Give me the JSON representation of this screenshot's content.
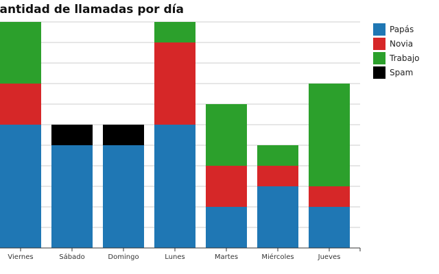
{
  "chart_data": {
    "type": "bar",
    "stacked": true,
    "title": "Cantidad de llamadas por día",
    "categories": [
      "Viernes",
      "Sábado",
      "Domingo",
      "Lunes",
      "Martes",
      "Miércoles",
      "Jueves"
    ],
    "series": [
      {
        "name": "Papás",
        "color": "#1f77b4",
        "values": [
          6,
          5,
          5,
          6,
          2,
          3,
          2
        ]
      },
      {
        "name": "Novia",
        "color": "#d62728",
        "values": [
          2,
          0,
          0,
          4,
          2,
          1,
          1
        ]
      },
      {
        "name": "Trabajo",
        "color": "#2ca02c",
        "values": [
          3,
          0,
          0,
          1,
          3,
          1,
          5
        ]
      },
      {
        "name": "Spam",
        "color": "#000000",
        "values": [
          0,
          1,
          1,
          0,
          0,
          0,
          0
        ]
      }
    ],
    "ylim": [
      0,
      11
    ],
    "grid": true,
    "legend": "top-right"
  }
}
